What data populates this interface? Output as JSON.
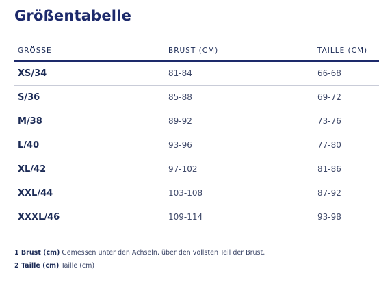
{
  "title": "Größentabelle",
  "columns": [
    "GRÖSSE",
    "BRUST (CM)",
    "TAILLE (CM)"
  ],
  "rows": [
    {
      "size": "XS/34",
      "brust": "81-84",
      "taille": "66-68"
    },
    {
      "size": "S/36",
      "brust": "85-88",
      "taille": "69-72"
    },
    {
      "size": "M/38",
      "brust": "89-92",
      "taille": "73-76"
    },
    {
      "size": "L/40",
      "brust": "93-96",
      "taille": "77-80"
    },
    {
      "size": "XL/42",
      "brust": "97-102",
      "taille": "81-86"
    },
    {
      "size": "XXL/44",
      "brust": "103-108",
      "taille": "87-92"
    },
    {
      "size": "XXXL/46",
      "brust": "109-114",
      "taille": "93-98"
    }
  ],
  "notes": [
    {
      "label": "1 Brust (cm)",
      "text": "Gemessen unter den Achseln, über den vollsten Teil der Brust."
    },
    {
      "label": "2 Taille (cm)",
      "text": "Taille (cm)"
    }
  ]
}
